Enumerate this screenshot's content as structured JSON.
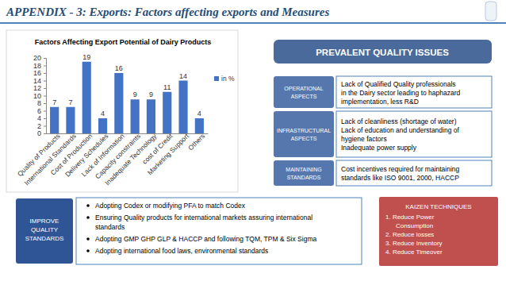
{
  "header": {
    "title": "APPENDIX - 3: Exports: Factors affecting exports and Measures"
  },
  "chart_data": {
    "type": "bar",
    "title": "Factors Affecting Export Potential of Dairy Products",
    "categories": [
      "Quality of Products",
      "International Standards",
      "Cost of Production",
      "Delivery Schedules",
      "Lack of Information",
      "Capacity constraints",
      "Inadequate Technology",
      "cost of Credit",
      "Marketing Support",
      "Others"
    ],
    "series": [
      {
        "name": "in %",
        "color": "#4472c4",
        "values": [
          7,
          7,
          19,
          4,
          16,
          9,
          9,
          11,
          14,
          4
        ]
      }
    ],
    "ylim": [
      0,
      20
    ],
    "yticks": [
      0,
      2,
      4,
      6,
      8,
      10,
      12,
      14,
      16,
      18,
      20
    ],
    "grid": false,
    "data_labels": true,
    "legend": "right"
  },
  "quality_issues": {
    "title": "PREVALENT QUALITY ISSUES",
    "rows": [
      {
        "label": [
          "OPERATIONAL",
          "ASPECTS"
        ],
        "text": [
          "Lack of Qualified Quality professionals",
          "in the Dairy sector leading to haphazard",
          "implementation, less R&D"
        ]
      },
      {
        "label": [
          "INFRASTRUCTURAL",
          "ASPECTS"
        ],
        "text": [
          "Lack of cleanliness (shortage of water)",
          "Lack of education and understanding of",
          "hygiene factors",
          "Inadequate power supply"
        ]
      },
      {
        "label": [
          "MAINTAINING",
          "STANDARDS"
        ],
        "text": [
          "Cost incentives required for maintaining",
          "standards like ISO 9001, 2000, HACCP"
        ]
      }
    ]
  },
  "improve": {
    "label": [
      "IMPROVE",
      "QUALITY",
      "STANDARDS"
    ],
    "bullets": [
      [
        "Adopting Codex or modifying PFA to match Codex"
      ],
      [
        "Ensuring Quality products for international markets assuring international",
        "standards"
      ],
      [
        "Adopting GMP GHP GLP & HACCP and following TQM, TPM & Six Sigma"
      ],
      [
        "Adopting international food laws, environmental standards"
      ]
    ]
  },
  "kaizen": {
    "title": "KAIZEN TECHNIQUES",
    "items": [
      [
        "1.  Reduce Power",
        "Consumption"
      ],
      [
        "2.  Reduce losses"
      ],
      [
        "3.  Reduce Inventory"
      ],
      [
        "4.  Reduce Timeover"
      ]
    ]
  }
}
